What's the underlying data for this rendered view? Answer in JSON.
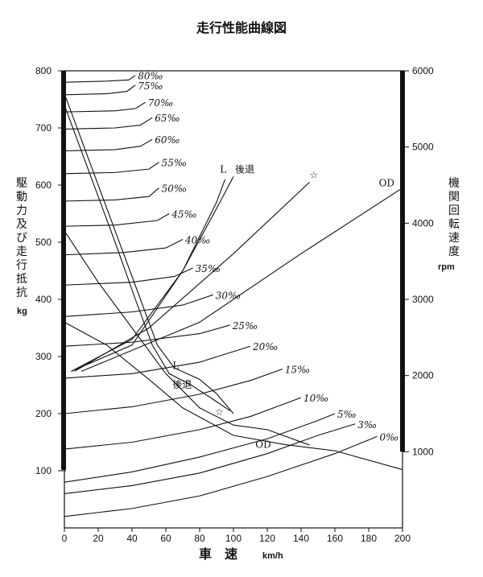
{
  "chart_data": {
    "type": "line",
    "title": "走行性能曲線図",
    "xlabel": "車　速",
    "xunit": "km/h",
    "ylabel_left": "駆動力 及び 走行抵抗",
    "yunit_left": "kg",
    "ylabel_right": "機関回転速度",
    "yunit_right": "rpm",
    "xlim": [
      0,
      200
    ],
    "ylim_left": [
      0,
      800
    ],
    "ylim_right": [
      0,
      6000
    ],
    "x_ticks": [
      "0",
      "20",
      "40",
      "60",
      "80",
      "100",
      "120",
      "140",
      "160",
      "180",
      "200"
    ],
    "y_ticks_left": [
      "100",
      "200",
      "300",
      "400",
      "500",
      "600",
      "700",
      "800"
    ],
    "y_ticks_right": [
      "1000",
      "2000",
      "3000",
      "4000",
      "5000",
      "6000"
    ],
    "resistance_curves": [
      {
        "name": "0‰",
        "points": [
          [
            0,
            20
          ],
          [
            40,
            34
          ],
          [
            80,
            56
          ],
          [
            120,
            90
          ],
          [
            160,
            130
          ],
          [
            185,
            160
          ]
        ]
      },
      {
        "name": "3‰",
        "points": [
          [
            0,
            60
          ],
          [
            40,
            74
          ],
          [
            80,
            96
          ],
          [
            120,
            130
          ],
          [
            150,
            162
          ],
          [
            172,
            182
          ]
        ]
      },
      {
        "name": "5‰",
        "points": [
          [
            0,
            80
          ],
          [
            40,
            98
          ],
          [
            80,
            124
          ],
          [
            120,
            156
          ],
          [
            150,
            188
          ],
          [
            160,
            200
          ]
        ]
      },
      {
        "name": "10‰",
        "points": [
          [
            0,
            138
          ],
          [
            40,
            150
          ],
          [
            80,
            172
          ],
          [
            110,
            195
          ],
          [
            140,
            228
          ]
        ]
      },
      {
        "name": "15‰",
        "points": [
          [
            0,
            200
          ],
          [
            40,
            212
          ],
          [
            80,
            234
          ],
          [
            110,
            258
          ],
          [
            129,
            278
          ]
        ]
      },
      {
        "name": "20‰",
        "points": [
          [
            0,
            262
          ],
          [
            40,
            270
          ],
          [
            80,
            290
          ],
          [
            110,
            318
          ]
        ]
      },
      {
        "name": "25‰",
        "points": [
          [
            0,
            318
          ],
          [
            40,
            325
          ],
          [
            80,
            340
          ],
          [
            98,
            355
          ]
        ]
      },
      {
        "name": "30‰",
        "points": [
          [
            0,
            370
          ],
          [
            40,
            378
          ],
          [
            70,
            390
          ],
          [
            88,
            408
          ]
        ]
      },
      {
        "name": "35‰",
        "points": [
          [
            0,
            425
          ],
          [
            40,
            430
          ],
          [
            65,
            440
          ],
          [
            76,
            455
          ]
        ]
      },
      {
        "name": "40‰",
        "points": [
          [
            0,
            478
          ],
          [
            35,
            482
          ],
          [
            60,
            490
          ],
          [
            70,
            505
          ]
        ]
      },
      {
        "name": "45‰",
        "points": [
          [
            0,
            528
          ],
          [
            30,
            530
          ],
          [
            55,
            538
          ],
          [
            62,
            550
          ]
        ]
      },
      {
        "name": "50‰",
        "points": [
          [
            0,
            572
          ],
          [
            30,
            574
          ],
          [
            50,
            580
          ],
          [
            56,
            595
          ]
        ]
      },
      {
        "name": "55‰",
        "points": [
          [
            0,
            620
          ],
          [
            30,
            622
          ],
          [
            50,
            628
          ],
          [
            56,
            640
          ]
        ]
      },
      {
        "name": "60‰",
        "points": [
          [
            0,
            660
          ],
          [
            30,
            662
          ],
          [
            45,
            668
          ],
          [
            52,
            680
          ]
        ]
      },
      {
        "name": "65‰",
        "points": [
          [
            0,
            698
          ],
          [
            30,
            700
          ],
          [
            45,
            705
          ],
          [
            52,
            718
          ]
        ]
      },
      {
        "name": "70‰",
        "points": [
          [
            0,
            728
          ],
          [
            30,
            730
          ],
          [
            42,
            734
          ],
          [
            48,
            745
          ]
        ]
      },
      {
        "name": "75‰",
        "points": [
          [
            0,
            758
          ],
          [
            25,
            760
          ],
          [
            37,
            764
          ],
          [
            42,
            775
          ]
        ]
      },
      {
        "name": "80‰",
        "points": [
          [
            0,
            780
          ],
          [
            25,
            782
          ],
          [
            38,
            784
          ],
          [
            42,
            792
          ]
        ]
      }
    ],
    "tractive_effort_curves": [
      {
        "name": "L",
        "points": [
          [
            0,
            760
          ],
          [
            15,
            640
          ],
          [
            30,
            520
          ],
          [
            45,
            400
          ],
          [
            55,
            320
          ],
          [
            65,
            280
          ],
          [
            80,
            260
          ],
          [
            90,
            235
          ],
          [
            100,
            200
          ]
        ]
      },
      {
        "name": "後退",
        "points": [
          [
            0,
            740
          ],
          [
            15,
            620
          ],
          [
            30,
            500
          ],
          [
            42,
            400
          ],
          [
            52,
            320
          ],
          [
            62,
            270
          ],
          [
            75,
            250
          ],
          [
            88,
            225
          ],
          [
            98,
            205
          ]
        ]
      },
      {
        "name": "☆",
        "points": [
          [
            0,
            520
          ],
          [
            20,
            430
          ],
          [
            40,
            350
          ],
          [
            60,
            270
          ],
          [
            80,
            210
          ],
          [
            100,
            180
          ],
          [
            120,
            172
          ],
          [
            145,
            145
          ]
        ]
      },
      {
        "name": "OD",
        "points": [
          [
            0,
            360
          ],
          [
            25,
            320
          ],
          [
            50,
            260
          ],
          [
            70,
            210
          ],
          [
            100,
            162
          ],
          [
            130,
            146
          ],
          [
            160,
            135
          ],
          [
            200,
            102
          ]
        ]
      }
    ],
    "engine_speed_lines": [
      {
        "name": "L",
        "points": [
          [
            4,
            274
          ],
          [
            40,
            330
          ],
          [
            70,
            450
          ],
          [
            90,
            570
          ],
          [
            95,
            610
          ]
        ]
      },
      {
        "name": "後退",
        "points": [
          [
            4,
            274
          ],
          [
            40,
            320
          ],
          [
            70,
            450
          ],
          [
            92,
            570
          ],
          [
            100,
            615
          ]
        ]
      },
      {
        "name": "☆",
        "points": [
          [
            6,
            274
          ],
          [
            50,
            350
          ],
          [
            100,
            480
          ],
          [
            145,
            605
          ]
        ]
      },
      {
        "name": "OD",
        "points": [
          [
            10,
            274
          ],
          [
            80,
            360
          ],
          [
            140,
            480
          ],
          [
            200,
            595
          ]
        ]
      }
    ]
  }
}
